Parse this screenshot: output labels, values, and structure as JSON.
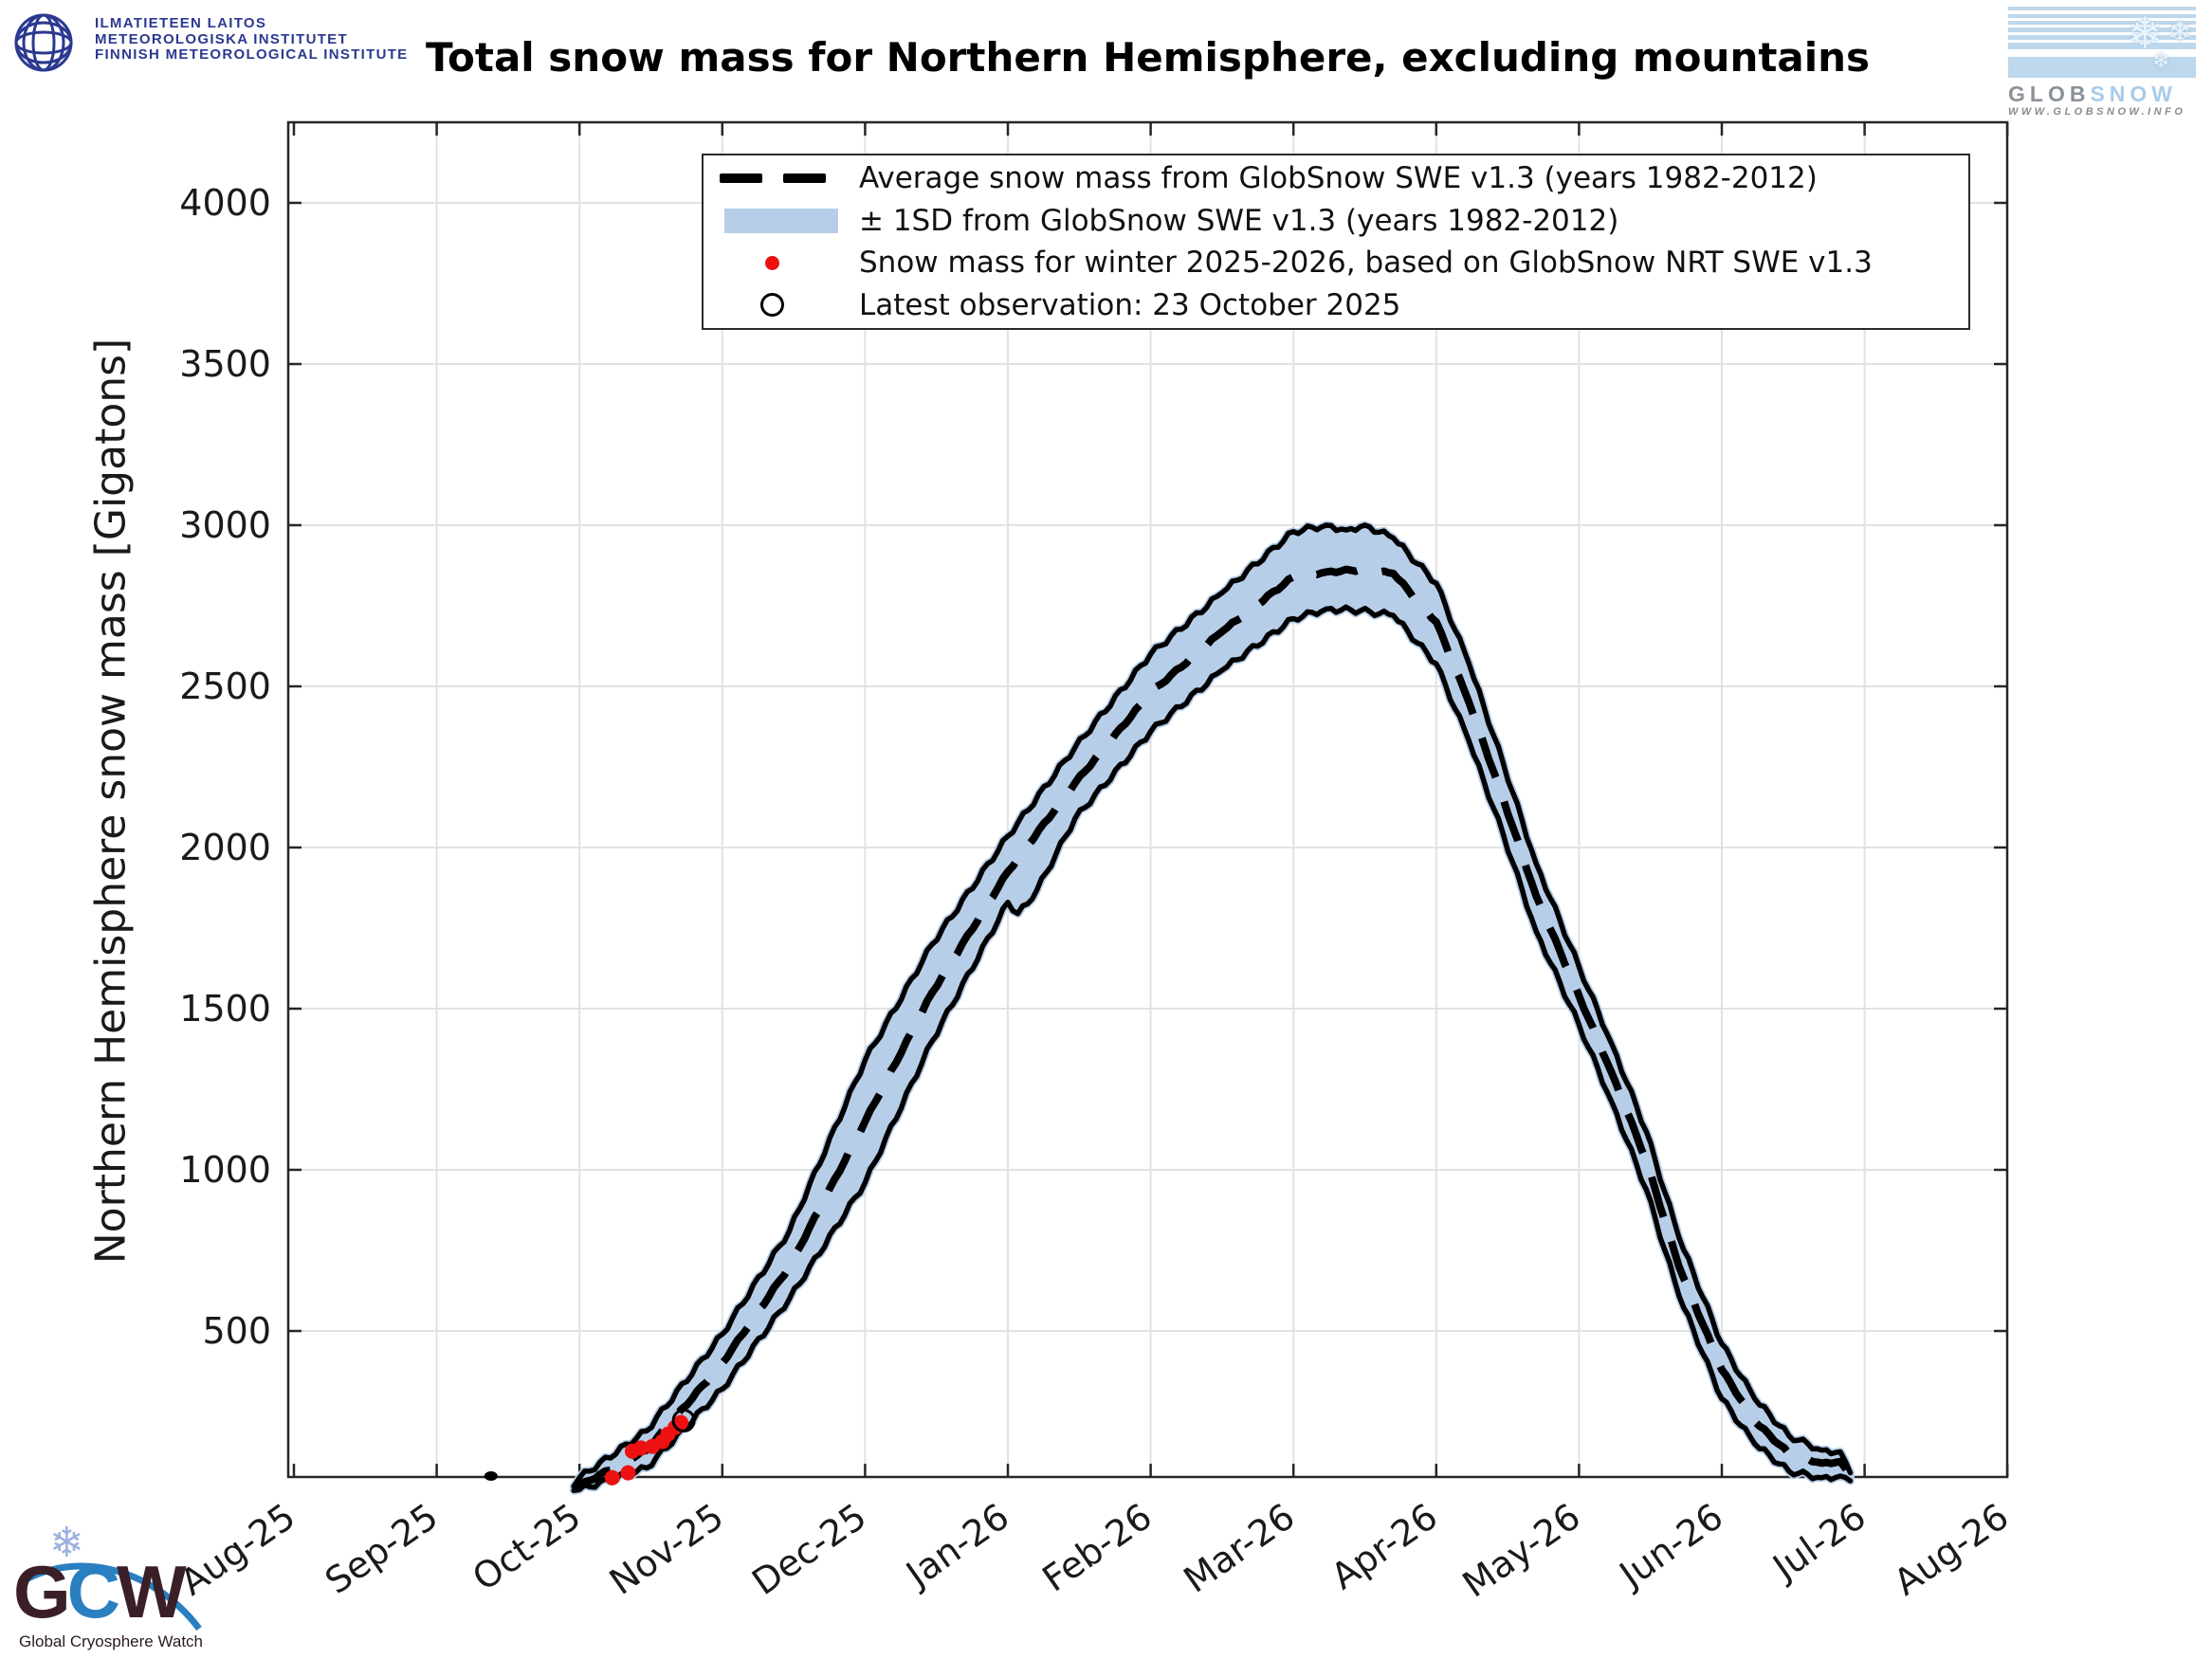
{
  "header": {
    "fmi_logo": {
      "line1": "ILMATIETEEN LAITOS",
      "line2": "METEOROLOGISKA INSTITUTET",
      "line3": "FINNISH METEOROLOGICAL INSTITUTE"
    },
    "title": "Total snow mass for Northern Hemisphere, excluding mountains",
    "globsnow_logo": {
      "glob": "GLOB",
      "snow": "SNOW",
      "url": "WWW.GLOBSNOW.INFO"
    }
  },
  "footer": {
    "gcw_logo": {
      "g": "G",
      "c": "C",
      "w": "W",
      "caption": "Global Cryosphere Watch"
    }
  },
  "chart_data": {
    "type": "area",
    "title": "Total snow mass for Northern Hemisphere, excluding mountains",
    "ylabel": "Northern Hemisphere snow mass [Gigatons]",
    "xlabel": "",
    "x_tick_labels": [
      "Aug-25",
      "Sep-25",
      "Oct-25",
      "Nov-25",
      "Dec-25",
      "Jan-26",
      "Feb-26",
      "Mar-26",
      "Apr-26",
      "May-26",
      "Jun-26",
      "Jul-26",
      "Aug-26"
    ],
    "y_ticks": [
      500,
      1000,
      1500,
      2000,
      2500,
      3000,
      3500,
      4000
    ],
    "ylim": [
      0,
      4250
    ],
    "grid": true,
    "legend_position": "top-inside",
    "legend": [
      {
        "marker": "dashed-line",
        "label": "Average snow mass from GlobSnow SWE v1.3 (years 1982-2012)"
      },
      {
        "marker": "band",
        "label": "± 1SD from GlobSnow SWE v1.3 (years 1982-2012)"
      },
      {
        "marker": "red-dot",
        "label": "Snow mass for winter 2025-2026, based on GlobSnow NRT SWE v1.3"
      },
      {
        "marker": "open-circle",
        "label": "Latest observation: 23 October 2025"
      }
    ],
    "colors": {
      "band": "#b7cee8",
      "curve": "#000000",
      "current_season": "#ee1111",
      "grid": "#e2e2e2",
      "frame": "#262626"
    },
    "x_axis_note": "x expressed in months after the Aug-25 tick (0 = Aug-25 ... 12 = Aug-26)",
    "series": {
      "mean": [
        [
          1.96,
          10
        ],
        [
          2.0,
          20
        ],
        [
          2.47,
          130
        ],
        [
          3.0,
          400
        ],
        [
          3.47,
          700
        ],
        [
          4.0,
          1150
        ],
        [
          4.47,
          1550
        ],
        [
          5.0,
          1925
        ],
        [
          5.47,
          2200
        ],
        [
          6.0,
          2480
        ],
        [
          6.5,
          2670
        ],
        [
          7.0,
          2840
        ],
        [
          7.23,
          2855
        ],
        [
          7.47,
          2862
        ],
        [
          7.7,
          2850
        ],
        [
          8.0,
          2700
        ],
        [
          8.23,
          2450
        ],
        [
          8.47,
          2150
        ],
        [
          8.7,
          1850
        ],
        [
          9.0,
          1540
        ],
        [
          9.23,
          1300
        ],
        [
          9.47,
          1030
        ],
        [
          9.7,
          700
        ],
        [
          10.0,
          380
        ],
        [
          10.23,
          220
        ],
        [
          10.47,
          120
        ],
        [
          10.7,
          90
        ],
        [
          10.83,
          95
        ],
        [
          10.9,
          50
        ]
      ],
      "upper_1sd": [
        [
          1.96,
          18
        ],
        [
          2.0,
          45
        ],
        [
          2.47,
          190
        ],
        [
          3.0,
          490
        ],
        [
          3.47,
          810
        ],
        [
          4.0,
          1340
        ],
        [
          4.47,
          1700
        ],
        [
          5.0,
          2035
        ],
        [
          5.47,
          2310
        ],
        [
          6.0,
          2600
        ],
        [
          6.5,
          2790
        ],
        [
          7.0,
          2980
        ],
        [
          7.23,
          3000
        ],
        [
          7.37,
          2985
        ],
        [
          7.5,
          3000
        ],
        [
          7.7,
          2960
        ],
        [
          8.0,
          2820
        ],
        [
          8.23,
          2570
        ],
        [
          8.47,
          2260
        ],
        [
          8.7,
          1950
        ],
        [
          9.0,
          1630
        ],
        [
          9.23,
          1390
        ],
        [
          9.47,
          1120
        ],
        [
          9.7,
          790
        ],
        [
          10.0,
          460
        ],
        [
          10.23,
          290
        ],
        [
          10.47,
          175
        ],
        [
          10.7,
          130
        ],
        [
          10.83,
          125
        ],
        [
          10.9,
          60
        ]
      ],
      "lower_1sd": [
        [
          1.96,
          5
        ],
        [
          2.0,
          8
        ],
        [
          2.47,
          75
        ],
        [
          3.0,
          320
        ],
        [
          3.47,
          600
        ],
        [
          4.0,
          960
        ],
        [
          4.47,
          1400
        ],
        [
          5.0,
          1830
        ],
        [
          5.07,
          1795
        ],
        [
          5.17,
          1840
        ],
        [
          5.47,
          2090
        ],
        [
          6.0,
          2360
        ],
        [
          6.5,
          2550
        ],
        [
          7.0,
          2710
        ],
        [
          7.23,
          2740
        ],
        [
          7.47,
          2735
        ],
        [
          7.7,
          2720
        ],
        [
          8.0,
          2570
        ],
        [
          8.23,
          2330
        ],
        [
          8.47,
          2040
        ],
        [
          8.7,
          1740
        ],
        [
          9.0,
          1450
        ],
        [
          9.23,
          1210
        ],
        [
          9.47,
          940
        ],
        [
          9.7,
          610
        ],
        [
          10.0,
          290
        ],
        [
          10.23,
          150
        ],
        [
          10.47,
          65
        ],
        [
          10.7,
          45
        ],
        [
          10.83,
          50
        ],
        [
          10.9,
          35
        ]
      ],
      "pre_season_blob": [
        [
          1.38,
          50
        ]
      ],
      "winter_2025_2026": [
        [
          2.23,
          45
        ],
        [
          2.34,
          60
        ],
        [
          2.37,
          127
        ],
        [
          2.43,
          137
        ],
        [
          2.51,
          142
        ],
        [
          2.58,
          157
        ],
        [
          2.62,
          180
        ],
        [
          2.67,
          201
        ],
        [
          2.71,
          216
        ]
      ],
      "latest_observation": {
        "x": 2.73,
        "value": 222,
        "date": "23 October 2025"
      }
    }
  }
}
